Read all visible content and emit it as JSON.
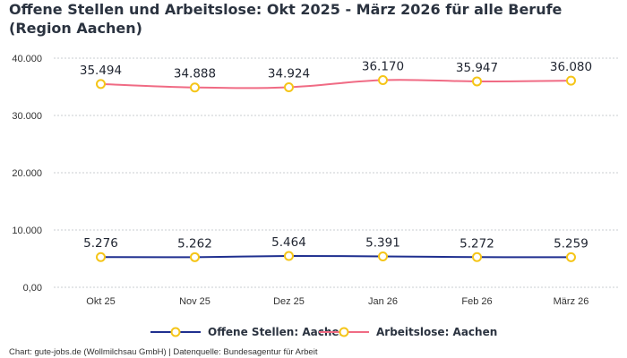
{
  "chart_data": {
    "type": "line",
    "title": "Offene Stellen und Arbeitslose: Okt 2025 - März 2026 für alle Berufe (Region Aachen)",
    "categories": [
      "Okt 25",
      "Nov 25",
      "Dez 25",
      "Jan 26",
      "Feb 26",
      "März 26"
    ],
    "ylim": [
      0,
      40000
    ],
    "y_ticks": [
      {
        "value": 0,
        "label": "0,00"
      },
      {
        "value": 10000,
        "label": "10.000"
      },
      {
        "value": 20000,
        "label": "20.000"
      },
      {
        "value": 30000,
        "label": "30.000"
      },
      {
        "value": 40000,
        "label": "40.000"
      }
    ],
    "grid": true,
    "legend_position": "bottom",
    "series": [
      {
        "name": "Offene Stellen: Aachen",
        "color": "#1f2f8f",
        "marker_color": "#f5c518",
        "values": [
          5276,
          5262,
          5464,
          5391,
          5272,
          5259
        ],
        "labels": [
          "5.276",
          "5.262",
          "5.464",
          "5.391",
          "5.272",
          "5.259"
        ]
      },
      {
        "name": "Arbeitslose: Aachen",
        "color": "#f06b84",
        "marker_color": "#f5c518",
        "values": [
          35494,
          34888,
          34924,
          36170,
          35947,
          36080
        ],
        "labels": [
          "35.494",
          "34.888",
          "34.924",
          "36.170",
          "35.947",
          "36.080"
        ]
      }
    ]
  },
  "footer": {
    "source": "Chart: gute-jobs.de (Wollmilchsau GmbH) | Datenquelle: Bundesagentur für Arbeit"
  }
}
